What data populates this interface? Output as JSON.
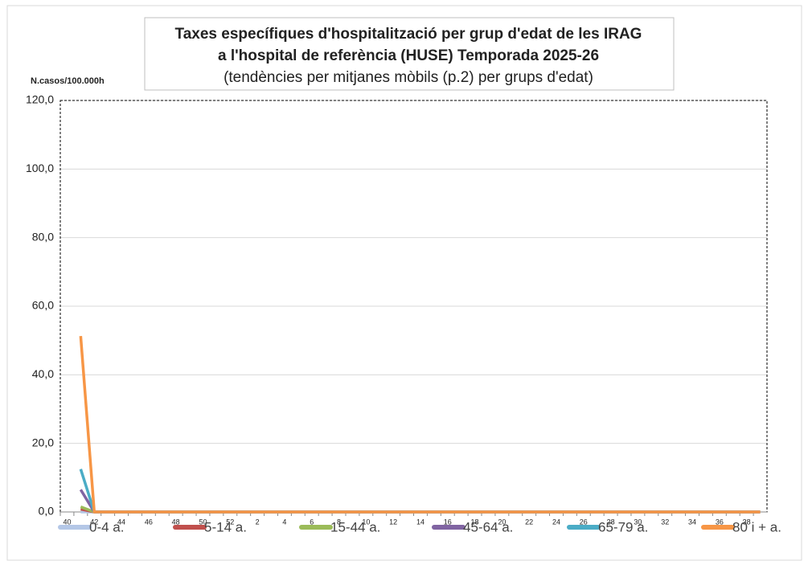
{
  "chart_data": {
    "type": "line",
    "title": [
      "Taxes específiques d'hospitalització per grup d'edat de les IRAG",
      "a l'hospital de referència (HUSE) Temporada 2025-26"
    ],
    "subtitle": "(tendències per mitjanes mòbils (p.2) per grups d'edat)",
    "y_label": "N.casos/100.000h",
    "categories": [
      "40",
      null,
      "42",
      null,
      "44",
      null,
      "46",
      null,
      "48",
      null,
      "50",
      null,
      "52",
      null,
      "2",
      null,
      "4",
      null,
      "6",
      null,
      "8",
      null,
      "10",
      null,
      "12",
      null,
      "14",
      null,
      "16",
      null,
      "18",
      null,
      "20",
      null,
      "22",
      null,
      "24",
      null,
      "26",
      null,
      "28",
      null,
      "30",
      null,
      "32",
      null,
      "34",
      null,
      "36",
      null,
      "38",
      null
    ],
    "series": [
      {
        "name": "0-4 a.",
        "color": "#b4c7e7",
        "values": [
          null,
          0.0,
          0,
          0,
          0,
          0,
          0,
          0,
          0,
          0,
          0,
          0,
          0,
          0,
          0,
          0,
          0,
          0,
          0,
          0,
          0,
          0,
          0,
          0,
          0,
          0,
          0,
          0,
          0,
          0,
          0,
          0,
          0,
          0,
          0,
          0,
          0,
          0,
          0,
          0,
          0,
          0,
          0,
          0,
          0,
          0,
          0,
          0,
          0,
          0,
          0,
          0
        ]
      },
      {
        "name": "5-14 a.",
        "color": "#c0504d",
        "values": [
          null,
          0.8,
          0,
          0,
          0,
          0,
          0,
          0,
          0,
          0,
          0,
          0,
          0,
          0,
          0,
          0,
          0,
          0,
          0,
          0,
          0,
          0,
          0,
          0,
          0,
          0,
          0,
          0,
          0,
          0,
          0,
          0,
          0,
          0,
          0,
          0,
          0,
          0,
          0,
          0,
          0,
          0,
          0,
          0,
          0,
          0,
          0,
          0,
          0,
          0,
          0,
          0
        ]
      },
      {
        "name": "15-44 a.",
        "color": "#9bbb59",
        "values": [
          null,
          1.5,
          0,
          0,
          0,
          0,
          0,
          0,
          0,
          0,
          0,
          0,
          0,
          0,
          0,
          0,
          0,
          0,
          0,
          0,
          0,
          0,
          0,
          0,
          0,
          0,
          0,
          0,
          0,
          0,
          0,
          0,
          0,
          0,
          0,
          0,
          0,
          0,
          0,
          0,
          0,
          0,
          0,
          0,
          0,
          0,
          0,
          0,
          0,
          0,
          0,
          0
        ]
      },
      {
        "name": "45-64 a.",
        "color": "#8064a2",
        "values": [
          null,
          6.5,
          0,
          0,
          0,
          0,
          0,
          0,
          0,
          0,
          0,
          0,
          0,
          0,
          0,
          0,
          0,
          0,
          0,
          0,
          0,
          0,
          0,
          0,
          0,
          0,
          0,
          0,
          0,
          0,
          0,
          0,
          0,
          0,
          0,
          0,
          0,
          0,
          0,
          0,
          0,
          0,
          0,
          0,
          0,
          0,
          0,
          0,
          0,
          0,
          0,
          0
        ]
      },
      {
        "name": "65-79 a.",
        "color": "#4bacc6",
        "values": [
          null,
          12.5,
          0,
          0,
          0,
          0,
          0,
          0,
          0,
          0,
          0,
          0,
          0,
          0,
          0,
          0,
          0,
          0,
          0,
          0,
          0,
          0,
          0,
          0,
          0,
          0,
          0,
          0,
          0,
          0,
          0,
          0,
          0,
          0,
          0,
          0,
          0,
          0,
          0,
          0,
          0,
          0,
          0,
          0,
          0,
          0,
          0,
          0,
          0,
          0,
          0,
          0
        ]
      },
      {
        "name": "80 i + a.",
        "color": "#f79646",
        "values": [
          null,
          51.3,
          0,
          0,
          0,
          0,
          0,
          0,
          0,
          0,
          0,
          0,
          0,
          0,
          0,
          0,
          0,
          0,
          0,
          0,
          0,
          0,
          0,
          0,
          0,
          0,
          0,
          0,
          0,
          0,
          0,
          0,
          0,
          0,
          0,
          0,
          0,
          0,
          0,
          0,
          0,
          0,
          0,
          0,
          0,
          0,
          0,
          0,
          0,
          0,
          0,
          0
        ]
      }
    ],
    "ylim": [
      0,
      120
    ],
    "yticks": [
      {
        "value": 0,
        "label": "0,0"
      },
      {
        "value": 20,
        "label": "20,0"
      },
      {
        "value": 40,
        "label": "40,0"
      },
      {
        "value": 60,
        "label": "60,0"
      },
      {
        "value": 80,
        "label": "80,0"
      },
      {
        "value": 100,
        "label": "100,0"
      },
      {
        "value": 120,
        "label": "120,0"
      }
    ],
    "grid": true,
    "legend": "bottom"
  }
}
